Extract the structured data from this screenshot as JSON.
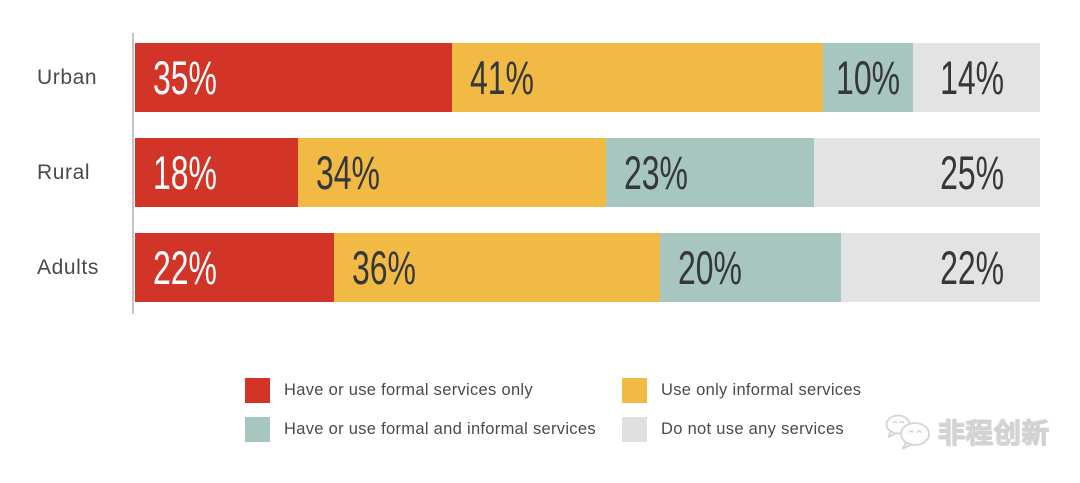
{
  "chart_data": {
    "type": "bar",
    "orientation": "horizontal",
    "stacked": true,
    "title": "",
    "xlabel": "",
    "ylabel": "",
    "xlim": [
      0,
      100
    ],
    "grid": false,
    "value_suffix": "%",
    "categories": [
      "Urban",
      "Rural",
      "Adults"
    ],
    "series": [
      {
        "name": "Have or use formal services only",
        "color": "#d23427",
        "label_color": "#ffffff",
        "values": [
          35,
          18,
          22
        ]
      },
      {
        "name": "Use only informal services",
        "color": "#f1ba45",
        "label_color": "#35373a",
        "values": [
          41,
          34,
          36
        ]
      },
      {
        "name": "Have or use formal and informal services",
        "color": "#a6c6bf",
        "label_color": "#35373a",
        "values": [
          10,
          23,
          20
        ]
      },
      {
        "name": "Do not use any services",
        "color": "#e3e3e3",
        "label_color": "#35373a",
        "values": [
          14,
          25,
          22
        ]
      }
    ],
    "segment_label_align": [
      [
        "left",
        "left",
        "center",
        "right"
      ],
      [
        "left",
        "left",
        "left",
        "right"
      ],
      [
        "left",
        "left",
        "left",
        "right"
      ]
    ],
    "legend_position": "bottom",
    "legend": [
      {
        "swatch_color": "#d23427",
        "label": "Have or use formal services only"
      },
      {
        "swatch_color": "#f1ba45",
        "label": "Use only informal services"
      },
      {
        "swatch_color": "#a6c6bf",
        "label": "Have or use formal and informal services"
      },
      {
        "swatch_color": "#e0e0e0",
        "label": "Do not use any services"
      }
    ]
  },
  "watermark": {
    "icon": "wechat-icon",
    "text": "非程创新"
  }
}
